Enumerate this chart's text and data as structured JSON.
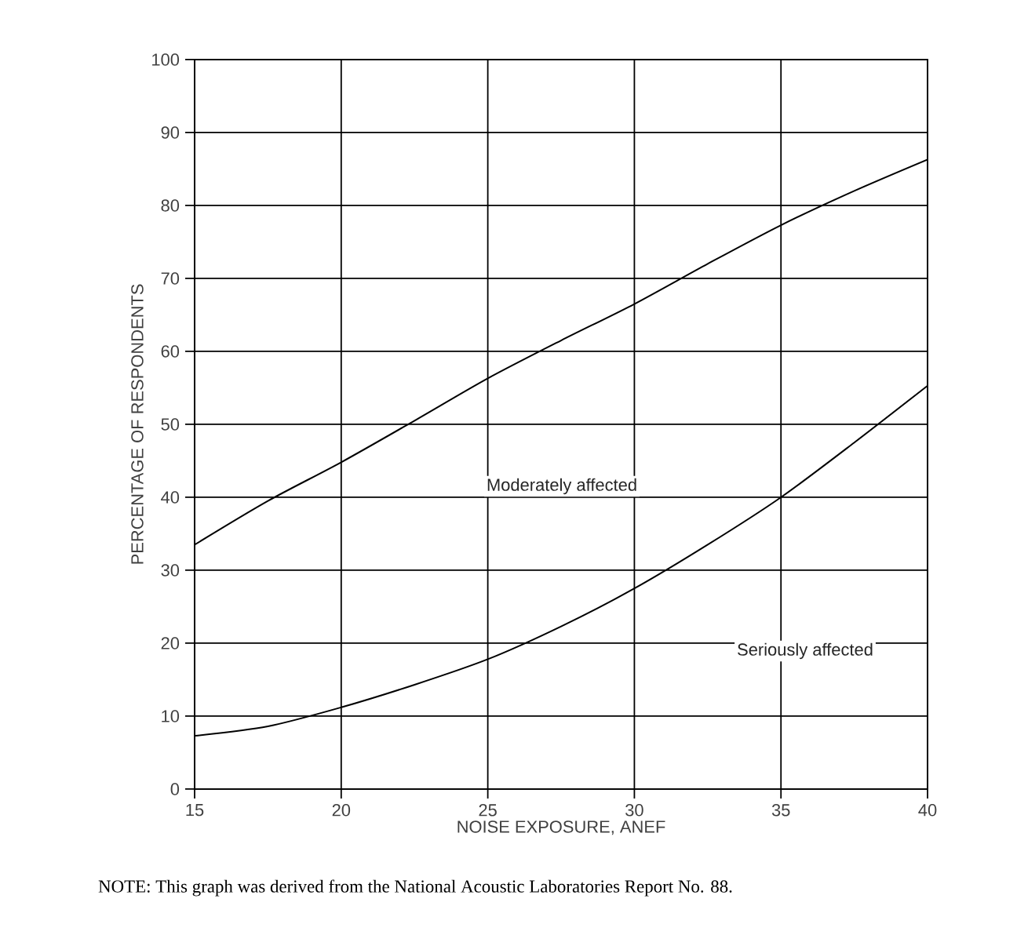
{
  "chart_data": {
    "type": "line",
    "xlabel": "NOISE EXPOSURE, ANEF",
    "ylabel": "PERCENTAGE OF RESPONDENTS",
    "x": [
      15,
      17.5,
      20,
      22.5,
      25,
      27.5,
      30,
      32.5,
      35,
      37.5,
      40
    ],
    "series": [
      {
        "color": "#000000",
        "values": [
          33.5,
          39.5,
          44.8,
          50.5,
          56.3,
          61.5,
          66.5,
          72,
          77.3,
          82,
          86.3
        ]
      },
      {
        "color": "#000000",
        "values": [
          7.3,
          8.6,
          11.2,
          14.3,
          17.8,
          22.3,
          27.5,
          33.5,
          40,
          47.5,
          55.3
        ]
      }
    ],
    "xlim": [
      15,
      40
    ],
    "ylim": [
      0,
      100
    ],
    "xticks": [
      15,
      20,
      25,
      30,
      35,
      40
    ],
    "yticks": [
      0,
      10,
      20,
      30,
      40,
      50,
      60,
      70,
      80,
      90,
      100
    ],
    "grid": true,
    "marker": "none",
    "line_style": "solid",
    "annotations": [
      "Moderately affected",
      "Seriously affected",
      "NOTE: This graph was derived from the National Acoustic Laboratories Report No. 88."
    ]
  }
}
